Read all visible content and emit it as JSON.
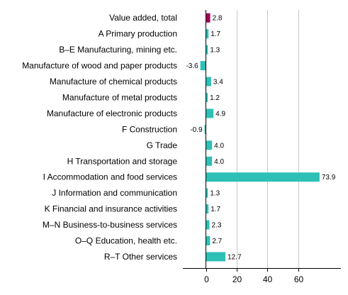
{
  "chart_data": {
    "type": "bar",
    "orientation": "horizontal",
    "categories": [
      "Value added, total",
      "A Primary production",
      "B–E Manufacturing, mining etc.",
      "Manufacture of wood and paper products",
      "Manufacture of chemical products",
      "Manufacture of metal products",
      "Manufacture of electronic products",
      "F Construction",
      "G Trade",
      "H Transportation and storage",
      "I Accommodation and food services",
      "J Information and communication",
      "K Financial and insurance activities",
      "M–N Business-to-business services",
      "O–Q Education, health etc.",
      "R–T Other services"
    ],
    "values": [
      2.8,
      1.7,
      1.3,
      -3.6,
      3.4,
      1.2,
      4.9,
      -0.9,
      4.0,
      4.0,
      73.9,
      1.3,
      1.7,
      2.3,
      2.7,
      12.7
    ],
    "value_labels": [
      "2.8",
      "1.7",
      "1.3",
      "-3.6",
      "3.4",
      "1.2",
      "4.9",
      "-0.9",
      "4.0",
      "4.0",
      "73.9",
      "1.3",
      "1.7",
      "2.3",
      "2.7",
      "12.7"
    ],
    "xlim": [
      -15,
      85
    ],
    "x_ticks": [
      0,
      20,
      40,
      60
    ],
    "x_tick_labels": [
      "0",
      "20",
      "40",
      "60"
    ],
    "gridlines": true,
    "colors": {
      "total": "#a0005a",
      "bar": "#2ebfb5",
      "grid": "#c8c8c8",
      "axis": "#000000"
    },
    "title": "",
    "xlabel": "",
    "ylabel": ""
  }
}
